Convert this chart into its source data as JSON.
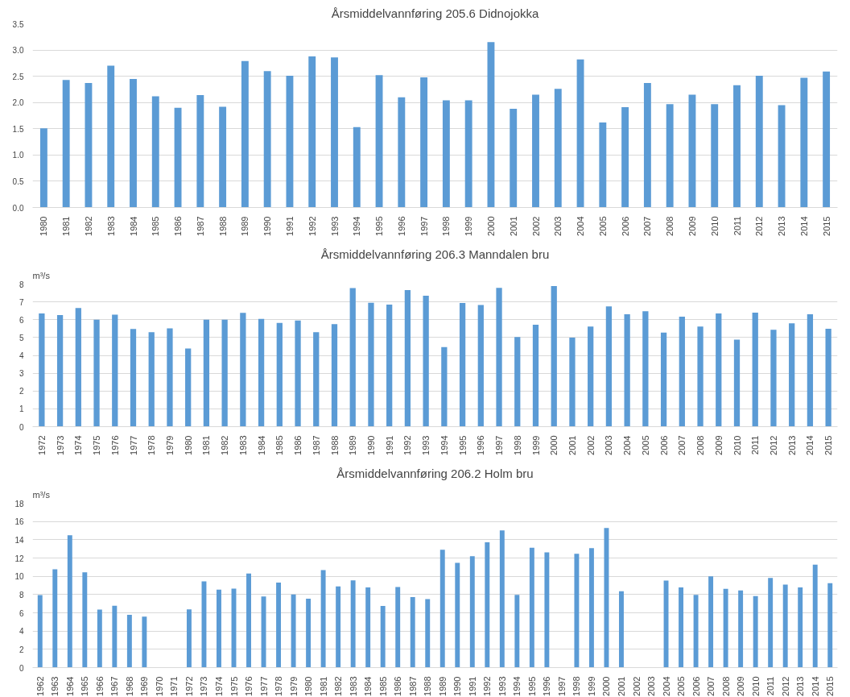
{
  "chart_data": [
    {
      "type": "bar",
      "title": "Årsmiddelvannføring 205.6 Didnojokka",
      "categories": [
        "1980",
        "1981",
        "1982",
        "1983",
        "1984",
        "1985",
        "1986",
        "1987",
        "1988",
        "1989",
        "1990",
        "1991",
        "1992",
        "1993",
        "1994",
        "1995",
        "1996",
        "1997",
        "1998",
        "1999",
        "2000",
        "2001",
        "2002",
        "2003",
        "2004",
        "2005",
        "2006",
        "2007",
        "2008",
        "2009",
        "2010",
        "2011",
        "2012",
        "2013",
        "2014",
        "2015"
      ],
      "values": [
        1.51,
        2.43,
        2.37,
        2.7,
        2.45,
        2.12,
        1.9,
        2.14,
        1.92,
        2.79,
        2.6,
        2.51,
        2.88,
        2.86,
        1.53,
        2.52,
        2.1,
        2.48,
        2.04,
        2.04,
        3.15,
        1.88,
        2.15,
        2.26,
        2.82,
        1.62,
        1.91,
        2.37,
        1.97,
        2.15,
        1.97,
        2.33,
        2.51,
        1.95,
        2.47,
        2.59
      ],
      "color": "#5b9bd5",
      "ylim": [
        0,
        3.5
      ],
      "yticks": [
        {
          "value": 0,
          "label": "0.0"
        },
        {
          "value": 0.5,
          "label": "0.5"
        },
        {
          "value": 1,
          "label": "1.0"
        },
        {
          "value": 1.5,
          "label": "1.5"
        },
        {
          "value": 2,
          "label": "2.0"
        },
        {
          "value": 2.5,
          "label": "2.5"
        },
        {
          "value": 3,
          "label": "3.0"
        },
        {
          "value": 3.5,
          "label": "3.5"
        }
      ],
      "grid": "y"
    },
    {
      "type": "bar",
      "title": "Årsmiddelvannføring 206.3 Manndalen bru",
      "ylabel": "m³/s",
      "categories": [
        "1972",
        "1973",
        "1974",
        "1975",
        "1976",
        "1977",
        "1978",
        "1979",
        "1980",
        "1981",
        "1982",
        "1983",
        "1984",
        "1985",
        "1986",
        "1987",
        "1988",
        "1989",
        "1990",
        "1991",
        "1992",
        "1993",
        "1994",
        "1995",
        "1996",
        "1997",
        "1998",
        "1999",
        "2000",
        "2001",
        "2002",
        "2003",
        "2004",
        "2005",
        "2006",
        "2007",
        "2008",
        "2009",
        "2010",
        "2011",
        "2012",
        "2013",
        "2014",
        "2015"
      ],
      "values": [
        6.35,
        6.26,
        6.65,
        6.0,
        6.28,
        5.48,
        5.3,
        5.51,
        4.38,
        6.0,
        6.0,
        6.38,
        6.05,
        5.82,
        5.95,
        5.3,
        5.75,
        7.77,
        6.95,
        6.85,
        7.66,
        7.35,
        4.46,
        6.94,
        6.83,
        7.78,
        5.03,
        5.72,
        7.89,
        5.0,
        5.62,
        6.75,
        6.31,
        6.48,
        5.28,
        6.17,
        5.62,
        6.35,
        4.88,
        6.4,
        5.43,
        5.8,
        6.31,
        5.49
      ],
      "color": "#5b9bd5",
      "ylim": [
        0,
        8
      ],
      "yticks": [
        0,
        1,
        2,
        3,
        4,
        5,
        6,
        7,
        8
      ],
      "grid": "y"
    },
    {
      "type": "bar",
      "title": "Årsmiddelvannføring 206.2 Holm bru",
      "ylabel": "m³/s",
      "categories": [
        "1962",
        "1963",
        "1964",
        "1965",
        "1966",
        "1967",
        "1968",
        "1969",
        "1970",
        "1971",
        "1972",
        "1973",
        "1974",
        "1975",
        "1976",
        "1977",
        "1978",
        "1979",
        "1980",
        "1981",
        "1982",
        "1983",
        "1984",
        "1985",
        "1986",
        "1987",
        "1988",
        "1989",
        "1990",
        "1991",
        "1992",
        "1993",
        "1994",
        "1995",
        "1996",
        "1997",
        "1998",
        "1999",
        "2000",
        "2001",
        "2002",
        "2003",
        "2004",
        "2005",
        "2006",
        "2007",
        "2008",
        "2009",
        "2010",
        "2011",
        "2012",
        "2013",
        "2014",
        "2015"
      ],
      "values": [
        7.95,
        10.77,
        14.5,
        10.43,
        6.35,
        6.78,
        5.77,
        5.58,
        null,
        null,
        6.38,
        9.45,
        8.53,
        8.65,
        10.3,
        7.79,
        9.3,
        8.0,
        7.55,
        10.67,
        8.9,
        9.55,
        8.77,
        6.75,
        8.83,
        7.73,
        7.5,
        12.9,
        11.46,
        12.2,
        13.72,
        15.02,
        7.96,
        13.13,
        12.61,
        null,
        12.46,
        13.07,
        15.29,
        8.36,
        null,
        null,
        9.54,
        8.78,
        7.96,
        10.0,
        8.63,
        8.45,
        7.84,
        9.82,
        9.09,
        8.78,
        11.28,
        9.24
      ],
      "color": "#5b9bd5",
      "ylim": [
        0,
        18
      ],
      "yticks": [
        0,
        2,
        4,
        6,
        8,
        10,
        12,
        14,
        16,
        18
      ],
      "grid": "y"
    }
  ]
}
